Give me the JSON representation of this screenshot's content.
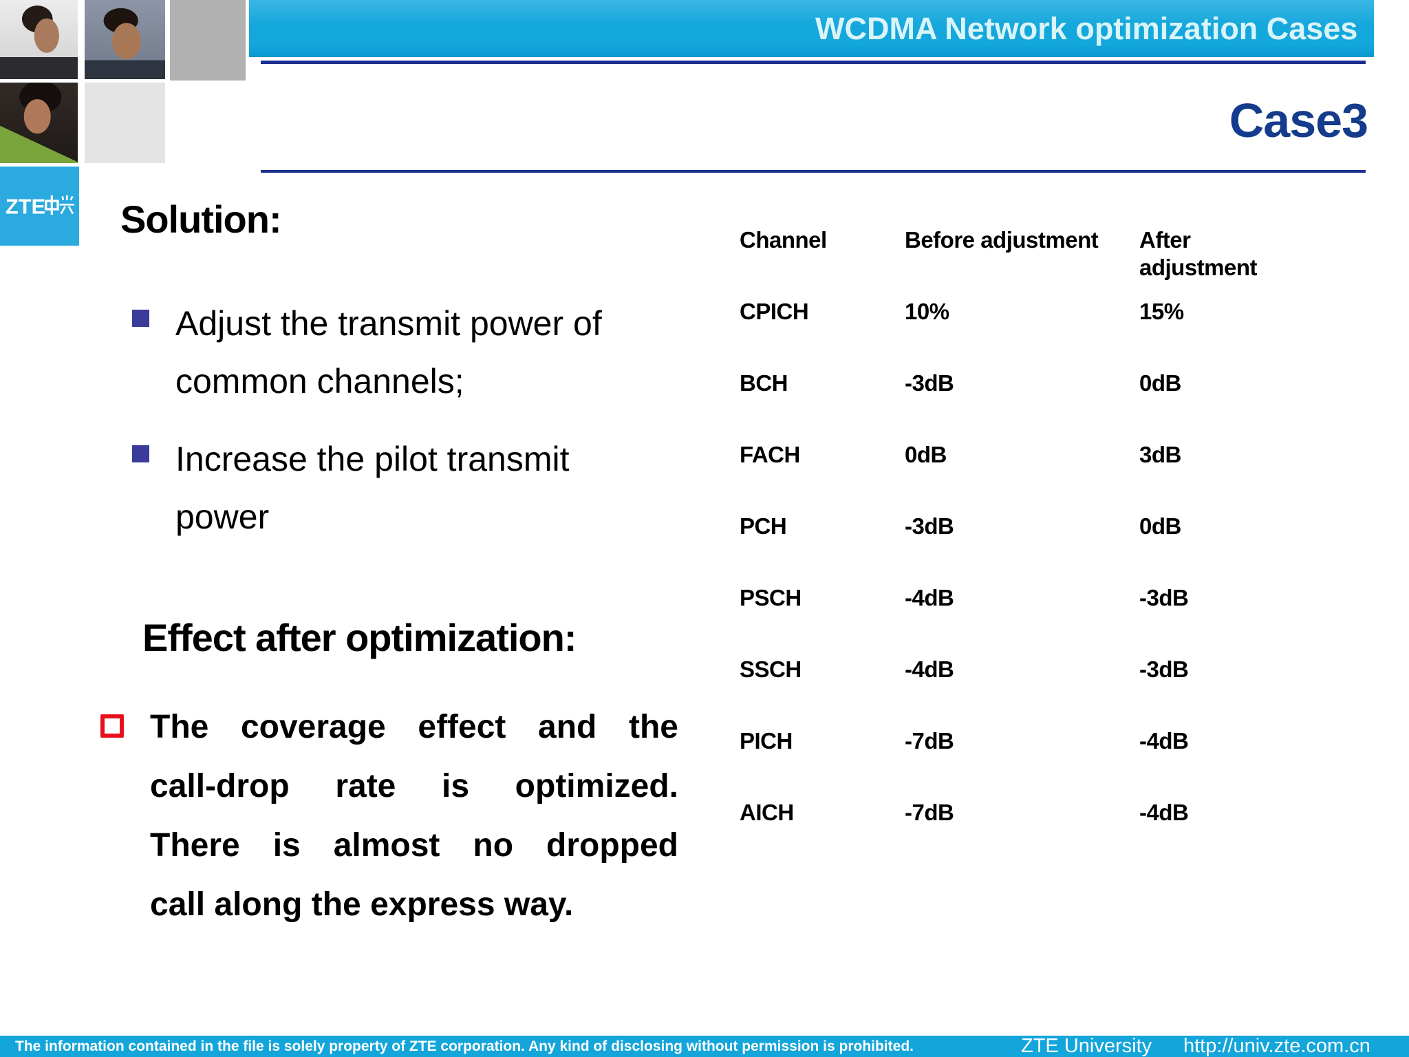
{
  "header": {
    "title": "WCDMA  Network optimization Cases",
    "case_label": "Case3"
  },
  "branding": {
    "logo_text": "ZTE中兴"
  },
  "content": {
    "solution_heading": "Solution:",
    "bullets": [
      {
        "lines": [
          "Adjust the transmit power of",
          "common channels;"
        ]
      },
      {
        "lines": [
          "Increase the pilot transmit",
          "power"
        ]
      }
    ],
    "effect_heading": "Effect after optimization:",
    "effect_lines": [
      "The coverage effect and the",
      "call-drop rate is optimized.",
      "There is almost no dropped",
      "call along the express way."
    ]
  },
  "table": {
    "columns": [
      "Channel",
      "Before adjustment",
      "After adjustment"
    ],
    "rows": [
      [
        "CPICH",
        "10%",
        "15%"
      ],
      [
        "BCH",
        "-3dB",
        "0dB"
      ],
      [
        "FACH",
        "0dB",
        "3dB"
      ],
      [
        "PCH",
        "-3dB",
        "0dB"
      ],
      [
        "PSCH",
        "-4dB",
        "-3dB"
      ],
      [
        "SSCH",
        "-4dB",
        "-3dB"
      ],
      [
        "PICH",
        "-7dB",
        "-4dB"
      ],
      [
        "AICH",
        "-7dB",
        "-4dB"
      ]
    ]
  },
  "footer": {
    "disclaimer": "The information contained in the file is solely property of ZTE corporation. Any kind of disclosing without permission is prohibited.",
    "org": "ZTE University",
    "url": "http://univ.zte.com.cn"
  },
  "colors": {
    "header_cyan": "#14a7dc",
    "footer_cyan": "#14a5db",
    "logo_cyan": "#2baae0",
    "navy": "#1a2f8f",
    "case_navy": "#143b8c",
    "bullet_blue": "#3b3b9b",
    "red": "#e8101e",
    "title_text": "#d9f4f9"
  }
}
